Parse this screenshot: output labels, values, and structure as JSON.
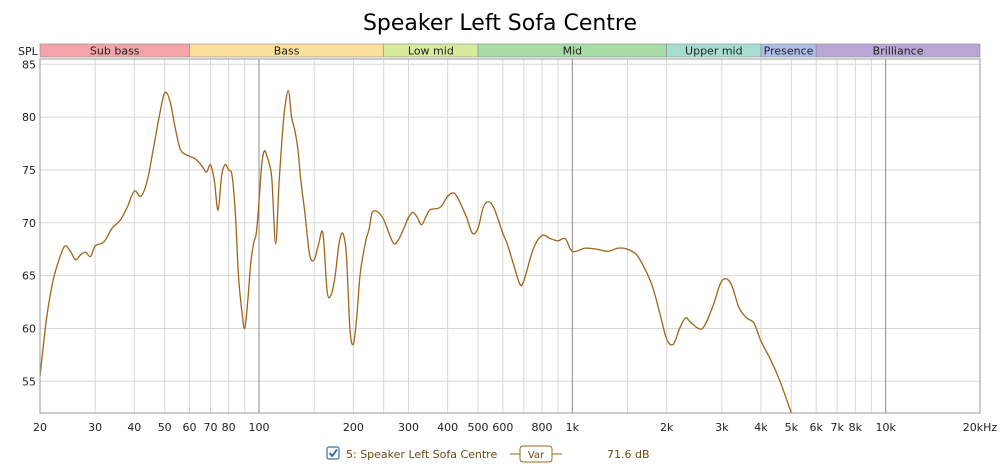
{
  "chart_data": {
    "type": "line",
    "title": "Speaker Left Sofa Centre",
    "ylabel": "SPL",
    "xscale": "log",
    "xlim": [
      20,
      20000
    ],
    "ylim": [
      52,
      85.5
    ],
    "grid": true,
    "bands": [
      {
        "label": "Sub bass",
        "from": 20,
        "to": 60,
        "color": "#f4a3a8"
      },
      {
        "label": "Bass",
        "from": 60,
        "to": 250,
        "color": "#fbe19c"
      },
      {
        "label": "Low mid",
        "from": 250,
        "to": 500,
        "color": "#d6ea9c"
      },
      {
        "label": "Mid",
        "from": 500,
        "to": 2000,
        "color": "#a6dca6"
      },
      {
        "label": "Upper mid",
        "from": 2000,
        "to": 4000,
        "color": "#a6dcd2"
      },
      {
        "label": "Presence",
        "from": 4000,
        "to": 6000,
        "color": "#aebde8"
      },
      {
        "label": "Brilliance",
        "from": 6000,
        "to": 20000,
        "color": "#b9a6d6"
      }
    ],
    "y_ticks": [
      {
        "value": 55,
        "label": "55"
      },
      {
        "value": 60,
        "label": "60"
      },
      {
        "value": 65,
        "label": "65"
      },
      {
        "value": 70,
        "label": "70"
      },
      {
        "value": 75,
        "label": "75"
      },
      {
        "value": 80,
        "label": "80"
      },
      {
        "value": 85,
        "label": "85"
      }
    ],
    "x_ticks": [
      {
        "value": 20,
        "label": "20"
      },
      {
        "value": 30,
        "label": "30"
      },
      {
        "value": 40,
        "label": "40"
      },
      {
        "value": 50,
        "label": "50"
      },
      {
        "value": 60,
        "label": "60"
      },
      {
        "value": 70,
        "label": "70"
      },
      {
        "value": 80,
        "label": "80"
      },
      {
        "value": 100,
        "label": "100"
      },
      {
        "value": 200,
        "label": "200"
      },
      {
        "value": 300,
        "label": "300"
      },
      {
        "value": 400,
        "label": "400"
      },
      {
        "value": 500,
        "label": "500"
      },
      {
        "value": 600,
        "label": "600"
      },
      {
        "value": 800,
        "label": "800"
      },
      {
        "value": 1000,
        "label": "1k"
      },
      {
        "value": 2000,
        "label": "2k"
      },
      {
        "value": 3000,
        "label": "3k"
      },
      {
        "value": 4000,
        "label": "4k"
      },
      {
        "value": 5000,
        "label": "5k"
      },
      {
        "value": 6000,
        "label": "6k"
      },
      {
        "value": 7000,
        "label": "7k"
      },
      {
        "value": 8000,
        "label": "8k"
      },
      {
        "value": 10000,
        "label": "10k"
      },
      {
        "value": 20000,
        "label": "20kHz"
      }
    ],
    "minor_gridlines": [
      90,
      150,
      250,
      700,
      900,
      1500,
      9000
    ],
    "major_gridlines": [
      100,
      1000,
      10000
    ],
    "series": [
      {
        "name": "5: Speaker Left Sofa Centre",
        "color": "#a0651a",
        "x": [
          20,
          21,
          22,
          23,
          24,
          25,
          26,
          27,
          28,
          29,
          30,
          32,
          34,
          36,
          38,
          40,
          42,
          44,
          46,
          48,
          50,
          52,
          54,
          56,
          58,
          60,
          63,
          66,
          68,
          70,
          72,
          74,
          76,
          78,
          80,
          82,
          84,
          86,
          88,
          90,
          92,
          94,
          96,
          98,
          100,
          102,
          104,
          106,
          108,
          110,
          113,
          116,
          120,
          124,
          127,
          130,
          133,
          136,
          140,
          145,
          150,
          155,
          160,
          165,
          170,
          175,
          180,
          185,
          190,
          195,
          200,
          205,
          210,
          215,
          220,
          225,
          230,
          240,
          250,
          260,
          270,
          280,
          290,
          300,
          310,
          320,
          330,
          340,
          350,
          360,
          380,
          400,
          420,
          440,
          460,
          480,
          500,
          520,
          540,
          560,
          580,
          600,
          620,
          650,
          680,
          700,
          750,
          800,
          850,
          900,
          950,
          1000,
          1100,
          1200,
          1300,
          1400,
          1500,
          1600,
          1700,
          1800,
          1900,
          2000,
          2100,
          2200,
          2300,
          2400,
          2600,
          2800,
          3000,
          3200,
          3400,
          3600,
          3800,
          4000,
          4300,
          4600,
          5000
        ],
        "y": [
          55.5,
          61,
          64.5,
          66.5,
          67.8,
          67.3,
          66.5,
          67,
          67.2,
          66.8,
          67.8,
          68.2,
          69.5,
          70.2,
          71.5,
          73,
          72.5,
          74,
          77,
          80,
          82.3,
          81.5,
          79,
          77,
          76.5,
          76.3,
          76,
          75.3,
          74.8,
          75.5,
          74,
          71.2,
          74.5,
          75.5,
          75,
          74.5,
          71,
          65,
          61.8,
          60,
          62.5,
          66,
          68,
          69,
          72,
          75.5,
          76.8,
          76.3,
          75.5,
          74,
          68,
          74,
          80,
          82.5,
          80,
          78.8,
          77,
          74,
          71,
          67,
          66.5,
          68,
          69,
          63.5,
          63.2,
          65,
          68,
          69,
          67,
          60,
          58.5,
          61,
          65,
          67,
          68.5,
          69.5,
          71,
          71,
          70.3,
          69,
          68,
          68.5,
          69.5,
          70.5,
          71,
          70.5,
          69.8,
          70.5,
          71.2,
          71.3,
          71.5,
          72.5,
          72.8,
          71.8,
          70.5,
          69,
          69.5,
          71.5,
          72,
          71.5,
          70.3,
          69,
          68,
          66,
          64.2,
          64.5,
          67.5,
          68.8,
          68.5,
          68.3,
          68.5,
          67.3,
          67.6,
          67.5,
          67.3,
          67.6,
          67.5,
          67,
          65.7,
          64,
          61.5,
          59,
          58.5,
          60,
          61,
          60.5,
          60,
          62,
          64.5,
          64.3,
          62,
          61,
          60.5,
          58.8,
          57,
          55,
          52
        ]
      }
    ]
  },
  "legend": {
    "checked": true,
    "series_label": "5: Speaker Left Sofa Centre",
    "var_label": "Var",
    "value": "71.6 dB"
  }
}
